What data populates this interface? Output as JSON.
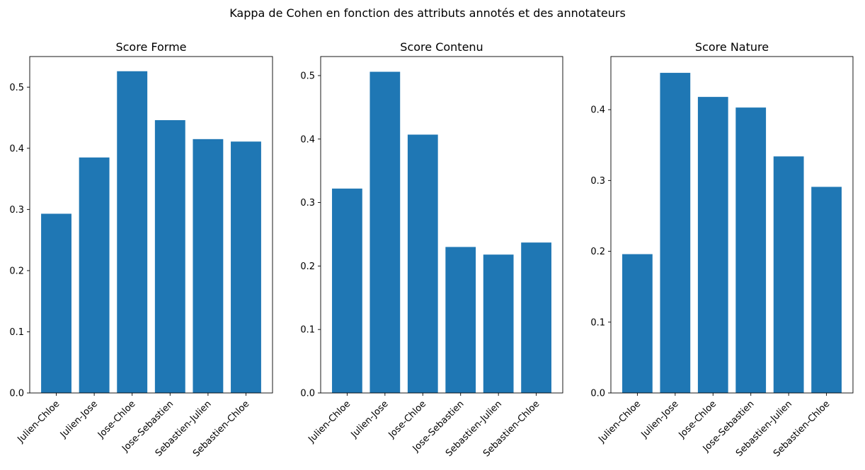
{
  "figure": {
    "suptitle": "Kappa de Cohen en fonction des attributs annotés et des annotateurs"
  },
  "chart_data": [
    {
      "type": "bar",
      "title": "Score Forme",
      "xlabel": "",
      "ylabel": "",
      "categories": [
        "Julien-Chloe",
        "Julien-Jose",
        "Jose-Chloe",
        "Jose-Sebastien",
        "Sebastien-Julien",
        "Sebastien-Chloe"
      ],
      "values": [
        0.293,
        0.385,
        0.526,
        0.446,
        0.415,
        0.411
      ],
      "ylim": [
        0,
        0.55
      ],
      "yticks": [
        "0.0",
        "0.1",
        "0.2",
        "0.3",
        "0.4",
        "0.5"
      ],
      "color": "#1f77b4"
    },
    {
      "type": "bar",
      "title": "Score Contenu",
      "xlabel": "",
      "ylabel": "",
      "categories": [
        "Julien-Chloe",
        "Julien-Jose",
        "Jose-Chloe",
        "Jose-Sebastien",
        "Sebastien-Julien",
        "Sebastien-Chloe"
      ],
      "values": [
        0.322,
        0.506,
        0.407,
        0.23,
        0.218,
        0.237
      ],
      "ylim": [
        0,
        0.53
      ],
      "yticks": [
        "0.0",
        "0.1",
        "0.2",
        "0.3",
        "0.4",
        "0.5"
      ],
      "color": "#1f77b4"
    },
    {
      "type": "bar",
      "title": "Score Nature",
      "xlabel": "",
      "ylabel": "",
      "categories": [
        "Julien-Chloe",
        "Julien-Jose",
        "Jose-Chloe",
        "Jose-Sebastien",
        "Sebastien-Julien",
        "Sebastien-Chloe"
      ],
      "values": [
        0.196,
        0.452,
        0.418,
        0.403,
        0.334,
        0.291
      ],
      "ylim": [
        0,
        0.475
      ],
      "yticks": [
        "0.0",
        "0.1",
        "0.2",
        "0.3",
        "0.4"
      ],
      "color": "#1f77b4"
    }
  ]
}
